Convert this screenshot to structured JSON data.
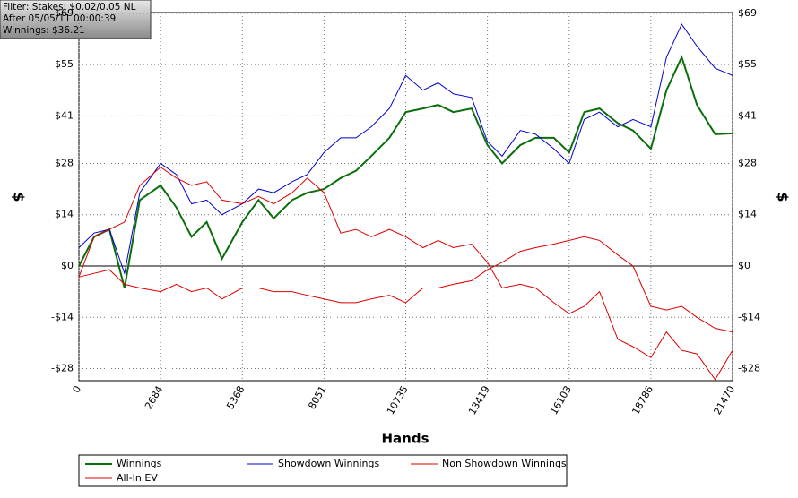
{
  "chart_data": {
    "type": "line",
    "info": [
      "Filter: Stakes: $0.02/0.05 NL",
      "After 05/05/11 00:00:39",
      "Winnings: $36.21"
    ],
    "x_label": "Hands",
    "y_label": "$",
    "x": [
      0,
      500,
      1000,
      1500,
      2000,
      2684,
      3200,
      3700,
      4200,
      4700,
      5368,
      5900,
      6400,
      7000,
      7500,
      8051,
      8600,
      9100,
      9600,
      10200,
      10735,
      11300,
      11800,
      12300,
      12900,
      13419,
      13900,
      14500,
      15000,
      15600,
      16103,
      16600,
      17100,
      17700,
      18200,
      18786,
      19300,
      19800,
      20300,
      20900,
      21470
    ],
    "series": [
      {
        "name": "Winnings",
        "color": "#0a6e0a",
        "values": [
          0,
          8,
          10,
          -6,
          18,
          22,
          16,
          8,
          12,
          2,
          12,
          18,
          13,
          18,
          20,
          21,
          24,
          26,
          30,
          35,
          42,
          43,
          44,
          42,
          43,
          33,
          28,
          33,
          35,
          35,
          31,
          42,
          43,
          39,
          37,
          32,
          48,
          57,
          44,
          36,
          36.21
        ]
      },
      {
        "name": "Showdown Winnings",
        "color": "#0000cc",
        "values": [
          5,
          9,
          10,
          -2,
          20,
          28,
          25,
          17,
          18,
          14,
          17,
          21,
          20,
          23,
          25,
          31,
          35,
          35,
          38,
          43,
          52,
          48,
          50,
          47,
          46,
          34,
          30,
          37,
          36,
          32,
          28,
          40,
          42,
          38,
          40,
          38,
          57,
          66,
          60,
          54,
          52
        ]
      },
      {
        "name": "Non Showdown Winnings",
        "color": "#dd0000",
        "values": [
          -3,
          -2,
          -1,
          -5,
          -6,
          -7,
          -5,
          -7,
          -6,
          -9,
          -6,
          -6,
          -7,
          -7,
          -8,
          -9,
          -10,
          -10,
          -9,
          -8,
          -10,
          -6,
          -6,
          -5,
          -4,
          -1,
          1,
          4,
          5,
          6,
          7,
          8,
          7,
          3,
          0,
          -11,
          -12,
          -11,
          -14,
          -17,
          -18
        ]
      },
      {
        "name": "All-In EV",
        "color": "#dd0000",
        "values": [
          -3,
          8,
          10,
          12,
          22,
          27,
          24,
          22,
          23,
          18,
          17,
          19,
          17,
          20,
          24,
          20,
          9,
          10,
          8,
          10,
          8,
          5,
          7,
          5,
          6,
          1,
          -6,
          -5,
          -6,
          -10,
          -13,
          -11,
          -7,
          -20,
          -22,
          -25,
          -18,
          -23,
          -24,
          -31,
          -23
        ]
      }
    ],
    "xlim": [
      0,
      21470
    ],
    "xticks": [
      0,
      2684,
      5368,
      8051,
      10735,
      13419,
      16103,
      18786,
      21470
    ],
    "ylim": [
      -31.3,
      69.2
    ],
    "yticks": [
      {
        "value": -28,
        "label": "-$28"
      },
      {
        "value": -14,
        "label": "-$14"
      },
      {
        "value": 0,
        "label": "$0"
      },
      {
        "value": 14,
        "label": "$14"
      },
      {
        "value": 28,
        "label": "$28"
      },
      {
        "value": 41,
        "label": "$41"
      },
      {
        "value": 55,
        "label": "$55"
      },
      {
        "value": 69,
        "label": "$69"
      }
    ],
    "grid": true
  }
}
